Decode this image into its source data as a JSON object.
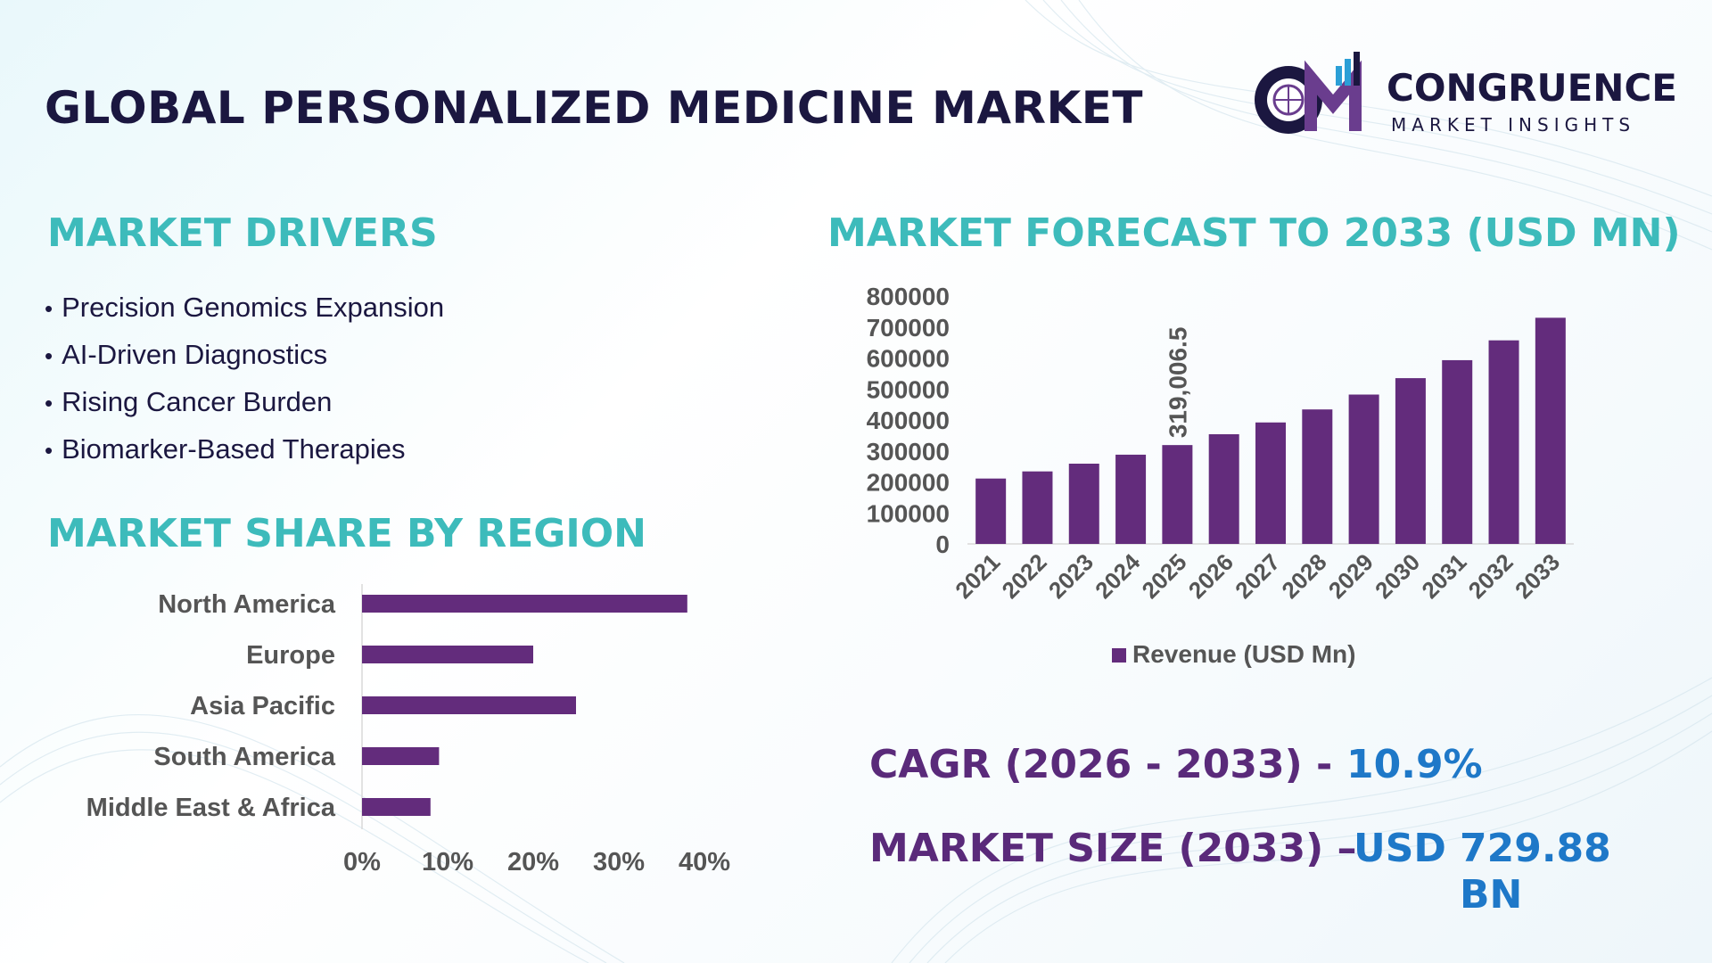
{
  "title": "GLOBAL PERSONALIZED MEDICINE MARKET",
  "logo": {
    "name": "CONGRUENCE",
    "subtitle": "MARKET INSIGHTS",
    "icon": "cm-logo-icon"
  },
  "colors": {
    "bar": "#632c7c",
    "section_title": "#3dbbbb",
    "title": "#1b1740",
    "stat_label": "#5a2a7a",
    "stat_value": "#1e78c8"
  },
  "drivers": {
    "heading": "MARKET DRIVERS",
    "items": [
      "Precision Genomics Expansion",
      "AI-Driven Diagnostics",
      "Rising Cancer Burden",
      "Biomarker-Based Therapies"
    ]
  },
  "region_section": {
    "heading": "MARKET SHARE BY REGION"
  },
  "forecast_section": {
    "heading": "MARKET FORECAST TO 2033 (USD MN)"
  },
  "chart_data": [
    {
      "type": "bar",
      "orientation": "vertical",
      "categories": [
        "2021",
        "2022",
        "2023",
        "2024",
        "2025",
        "2026",
        "2027",
        "2028",
        "2029",
        "2030",
        "2031",
        "2032",
        "2033"
      ],
      "series": [
        {
          "name": "Revenue (USD Mn)",
          "values": [
            211000,
            234000,
            259000,
            288000,
            319006.5,
            354000,
            392000,
            434000,
            482000,
            535000,
            593000,
            657000,
            729880
          ]
        }
      ],
      "data_labels": [
        {
          "category": "2025",
          "label": "319,006.5"
        }
      ],
      "y_ticks": [
        "0",
        "100000",
        "200000",
        "300000",
        "400000",
        "500000",
        "600000",
        "700000",
        "800000"
      ],
      "ylim": [
        0,
        800000
      ],
      "legend": "bottom",
      "grid": false
    },
    {
      "type": "bar",
      "orientation": "horizontal",
      "categories": [
        "North America",
        "Europe",
        "Asia Pacific",
        "South America",
        "Middle East & Africa"
      ],
      "values": [
        38,
        20,
        25,
        9,
        8
      ],
      "x_ticks": [
        "0%",
        "10%",
        "20%",
        "30%",
        "40%"
      ],
      "xlim": [
        0,
        40
      ],
      "grid": false
    }
  ],
  "stats": {
    "cagr_label": "CAGR (2026 - 2033) -",
    "cagr_value": "10.9%",
    "size_label": "MARKET SIZE (2033) –",
    "size_currency": "USD",
    "size_value": "729.88",
    "size_unit": "BN"
  }
}
